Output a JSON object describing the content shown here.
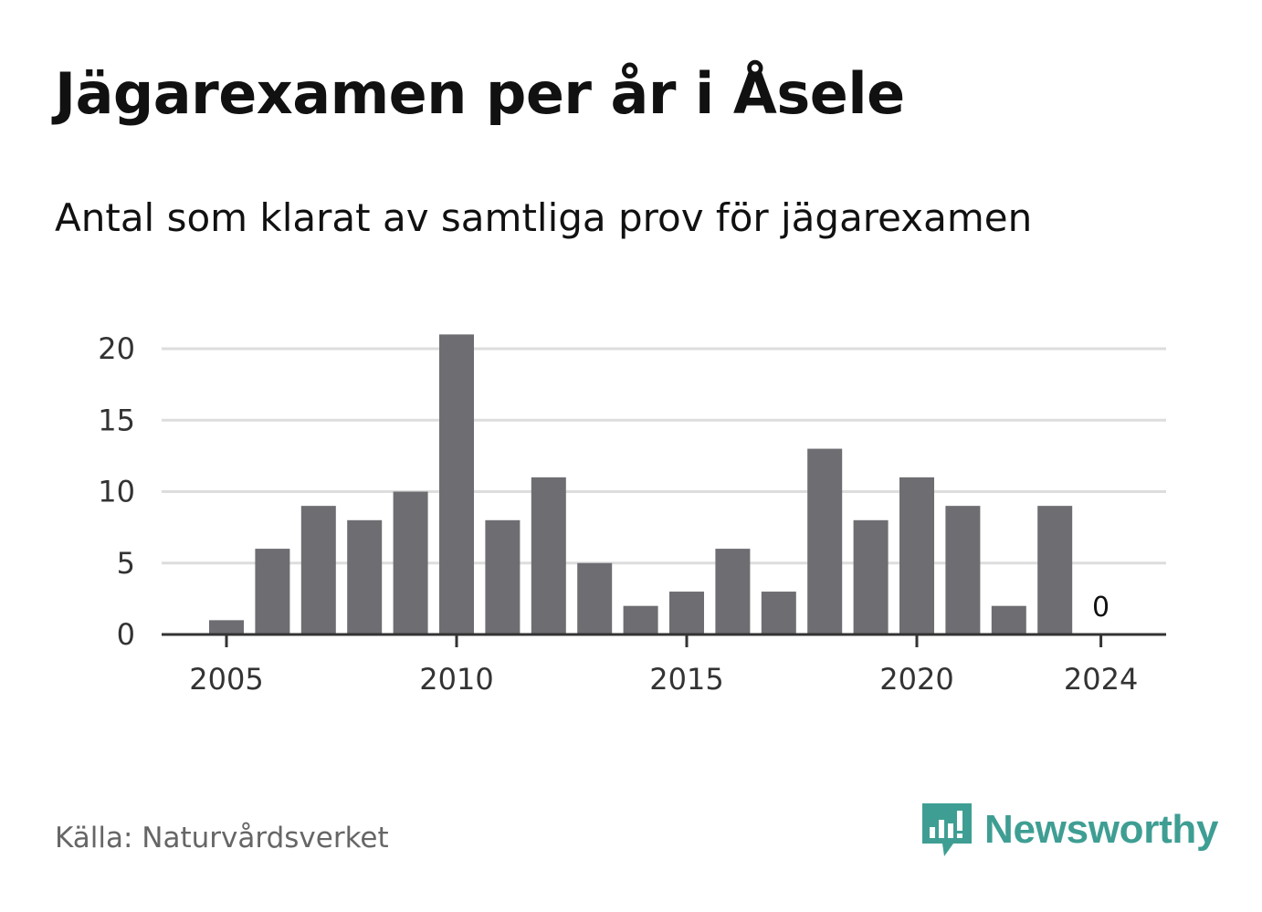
{
  "header": {
    "title": "Jägarexamen per år i Åsele",
    "subtitle": "Antal som klarat av samtliga prov för jägarexamen"
  },
  "footer": {
    "source": "Källa: Naturvårdsverket",
    "brand": "Newsworthy",
    "brand_icon": "bar-chart-speech-bubble-icon",
    "brand_color": "#3f9e93"
  },
  "chart_data": {
    "type": "bar",
    "title": "Jägarexamen per år i Åsele",
    "subtitle": "Antal som klarat av samtliga prov för jägarexamen",
    "xlabel": "",
    "ylabel": "",
    "categories": [
      2005,
      2006,
      2007,
      2008,
      2009,
      2010,
      2011,
      2012,
      2013,
      2014,
      2015,
      2016,
      2017,
      2018,
      2019,
      2020,
      2021,
      2022,
      2023,
      2024
    ],
    "values": [
      1,
      6,
      9,
      8,
      10,
      21,
      8,
      11,
      5,
      2,
      3,
      6,
      3,
      13,
      8,
      11,
      9,
      2,
      9,
      0
    ],
    "ylim": [
      0,
      20
    ],
    "yticks": [
      0,
      5,
      10,
      15,
      20
    ],
    "xticks": [
      2005,
      2010,
      2015,
      2020,
      2024
    ],
    "annotations": [
      {
        "x": 2024,
        "label": "0"
      }
    ],
    "grid": true,
    "bar_color": "#6e6d72"
  }
}
